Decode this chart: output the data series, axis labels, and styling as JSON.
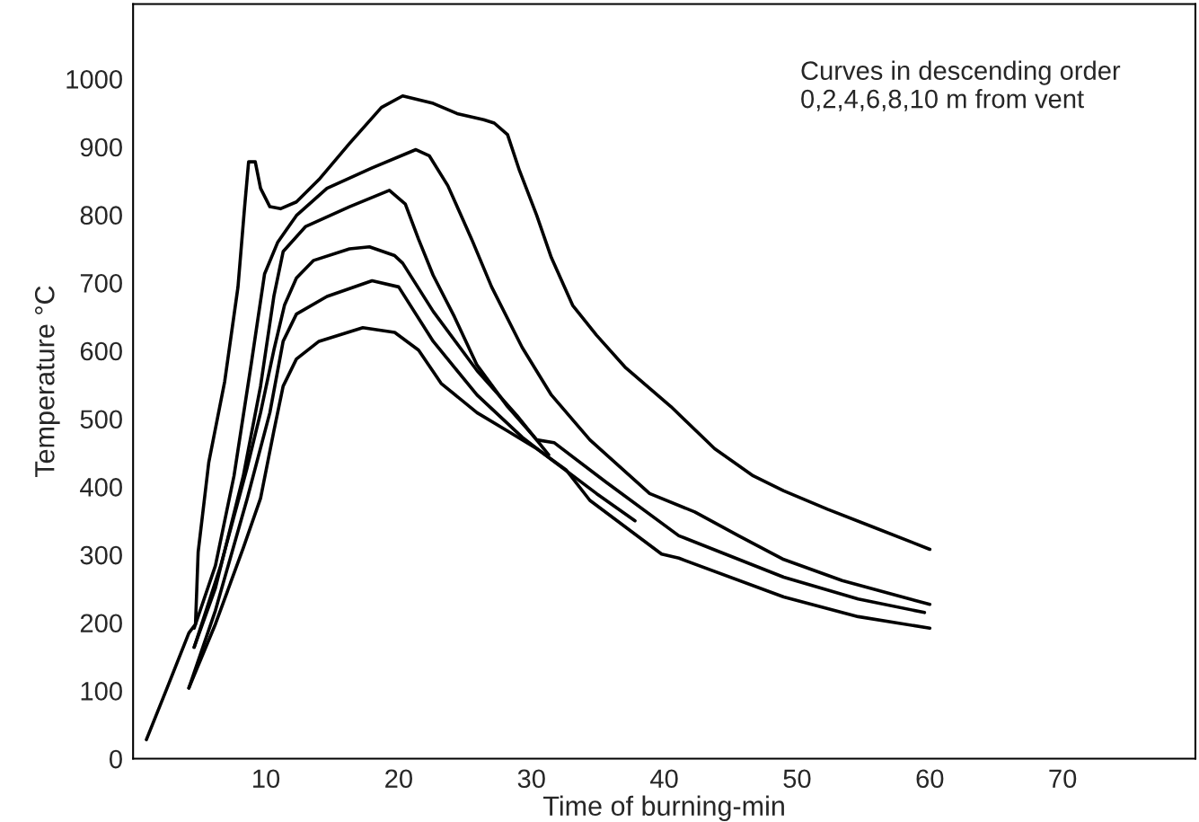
{
  "chart_data": {
    "type": "line",
    "xlabel": "Time of burning-min",
    "ylabel": "Temperature °C",
    "annotations": [
      "Curves in descending order\n0,2,4,6,8,10 m from vent"
    ],
    "xlim": [
      0,
      80
    ],
    "xticks": [
      10,
      20,
      30,
      40,
      50,
      60,
      70
    ],
    "ylim": [
      0,
      1110
    ],
    "yticks": [
      0,
      100,
      200,
      300,
      400,
      500,
      600,
      700,
      800,
      900,
      1000
    ],
    "grid": false,
    "marker": "none",
    "line_style": "solid",
    "series": [
      {
        "color": "#000000",
        "x": [
          1.0,
          2.6,
          4.2,
          4.7,
          4.9,
          5.7,
          6.9,
          7.9,
          8.4,
          8.7,
          9.2,
          9.6,
          10.3,
          11.1,
          12.3,
          14.0,
          16.3,
          18.7,
          20.3,
          22.6,
          24.4,
          26.4,
          27.2,
          28.2,
          29.1,
          30.4,
          31.5,
          33.1,
          34.9,
          37.1,
          40.5,
          43.8,
          46.7,
          49.0,
          52.3,
          55.7,
          60.0
        ],
        "values": [
          28,
          106,
          185,
          198,
          304,
          436,
          555,
          694,
          812,
          878,
          878,
          839,
          812,
          809,
          819,
          852,
          905,
          958,
          975,
          964,
          949,
          940,
          935,
          918,
          865,
          799,
          737,
          667,
          623,
          575,
          518,
          456,
          416,
          394,
          367,
          341,
          308
        ]
      },
      {
        "color": "#000000",
        "x": [
          4.6,
          6.2,
          7.6,
          8.9,
          9.9,
          10.9,
          12.3,
          14.6,
          18.0,
          21.3,
          22.3,
          23.7,
          25.5,
          27.0,
          29.3,
          31.5,
          34.4,
          38.9,
          42.3,
          45.6,
          49.0,
          53.4,
          60.0
        ],
        "values": [
          192,
          284,
          416,
          581,
          713,
          760,
          799,
          839,
          869,
          896,
          887,
          843,
          764,
          694,
          605,
          535,
          469,
          390,
          363,
          328,
          293,
          262,
          227
        ]
      },
      {
        "color": "#000000",
        "x": [
          4.6,
          6.2,
          8.3,
          9.6,
          10.6,
          11.3,
          13.0,
          16.3,
          19.3,
          20.5,
          21.5,
          22.6,
          24.2,
          25.9,
          28.2,
          30.4,
          31.7,
          35.6,
          41.1,
          49.0,
          54.6,
          59.6
        ],
        "values": [
          164,
          251,
          416,
          548,
          680,
          746,
          783,
          812,
          836,
          816,
          764,
          711,
          650,
          579,
          518,
          469,
          465,
          407,
          328,
          267,
          235,
          215
        ]
      },
      {
        "color": "#000000",
        "x": [
          4.6,
          6.6,
          8.6,
          9.6,
          10.6,
          11.4,
          12.3,
          13.6,
          16.3,
          17.8,
          19.7,
          20.3,
          22.6,
          25.9,
          28.9,
          31.3
        ],
        "values": [
          164,
          284,
          429,
          509,
          601,
          667,
          707,
          733,
          750,
          753,
          740,
          729,
          658,
          571,
          505,
          447
        ]
      },
      {
        "color": "#000000",
        "x": [
          4.2,
          6.2,
          8.6,
          10.3,
          11.3,
          12.3,
          14.6,
          18.0,
          20.0,
          22.6,
          25.9,
          29.3,
          31.3,
          34.9,
          37.8
        ],
        "values": [
          104,
          218,
          383,
          509,
          614,
          654,
          680,
          703,
          694,
          614,
          535,
          473,
          443,
          390,
          350
        ]
      },
      {
        "color": "#000000",
        "x": [
          4.2,
          6.2,
          8.3,
          9.6,
          10.6,
          11.3,
          12.3,
          14.0,
          17.3,
          19.7,
          21.5,
          23.2,
          25.9,
          28.2,
          30.4,
          32.6,
          34.4,
          39.8,
          41.1,
          49.0,
          54.6,
          60.0
        ],
        "values": [
          104,
          198,
          310,
          383,
          482,
          548,
          588,
          614,
          634,
          627,
          601,
          552,
          509,
          482,
          456,
          425,
          380,
          301,
          295,
          238,
          209,
          192
        ]
      }
    ]
  }
}
